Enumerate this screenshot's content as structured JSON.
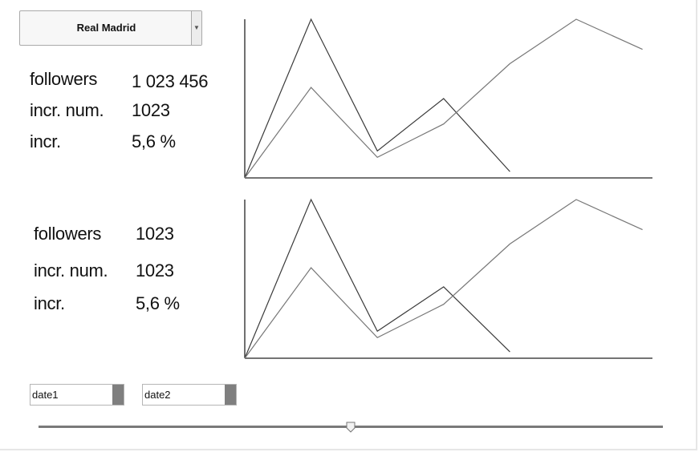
{
  "team_select": {
    "selected": "Real Madrid"
  },
  "panel1": {
    "stats": [
      {
        "label": "followers",
        "value": "1 023 456"
      },
      {
        "label": "incr. num.",
        "value": "1023"
      },
      {
        "label": "incr.",
        "value": "5,6 %"
      }
    ]
  },
  "panel2": {
    "stats": [
      {
        "label": "followers",
        "value": "1023"
      },
      {
        "label": "incr. num.",
        "value": "1023"
      },
      {
        "label": "incr.",
        "value": "5,6 %"
      }
    ]
  },
  "chart_data": [
    {
      "type": "line",
      "x": [
        0,
        1,
        2,
        3,
        4,
        5,
        6
      ],
      "series": [
        {
          "values": [
            0,
            100,
            17,
            50,
            4,
            null,
            null
          ]
        },
        {
          "values": [
            0,
            57,
            13,
            34,
            72,
            100,
            81
          ]
        }
      ],
      "xlim": [
        0,
        6.15
      ],
      "ylim": [
        0,
        100
      ]
    },
    {
      "type": "line",
      "x": [
        0,
        1,
        2,
        3,
        4,
        5,
        6
      ],
      "series": [
        {
          "values": [
            0,
            100,
            17,
            45,
            4,
            null,
            null
          ]
        },
        {
          "values": [
            0,
            57,
            13,
            34,
            72,
            100,
            81
          ]
        }
      ],
      "xlim": [
        0,
        6.15
      ],
      "ylim": [
        0,
        100
      ]
    }
  ],
  "date1": {
    "value": "date1"
  },
  "date2": {
    "value": "date2"
  },
  "slider": {
    "value": 0.5
  }
}
